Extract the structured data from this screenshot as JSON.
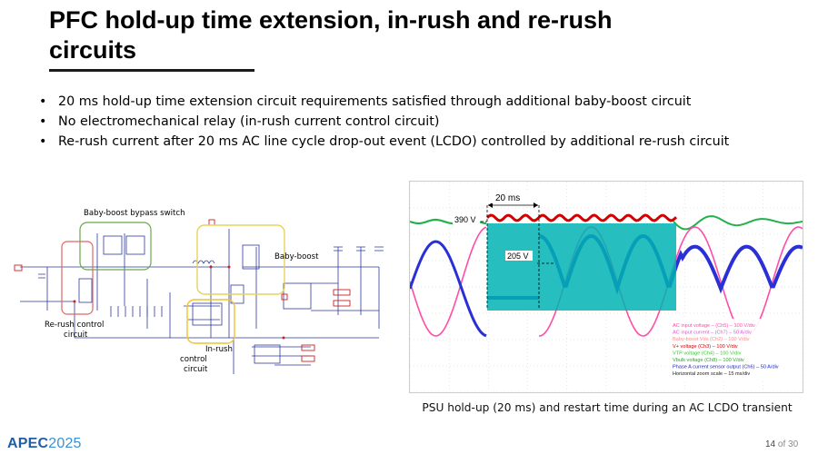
{
  "slide": {
    "title": "PFC hold-up time extension, in-rush and re-rush circuits",
    "bullets": [
      "20 ms hold-up time extension circuit requirements satisfied through additional baby-boost circuit",
      "No electromechanical relay (in-rush current control circuit)",
      "Re-rush current after 20 ms AC line cycle drop-out event (LCDO) controlled by additional re-rush circuit"
    ],
    "caption": "PSU hold-up (20 ms) and restart time during an AC LCDO transient",
    "page_current": "14",
    "page_separator": "of",
    "page_total": "30"
  },
  "logo": {
    "apec": "APEC",
    "year": "2025"
  },
  "schematic": {
    "labels": {
      "bypass_switch": "Baby-boost bypass switch",
      "baby_boost": "Baby-boost",
      "rerush_line1": "Re-rush control",
      "rerush_line2": "circuit",
      "inrush_line1": "In-rush",
      "inrush_line2": "control",
      "inrush_line3": "circuit"
    },
    "colors": {
      "wire": "#2f3a9e",
      "bypass_box": "#6aa84f",
      "boost_box": "#e6d35a",
      "rerush_box": "#e06666",
      "inrush_box": "#f1c232",
      "component_red": "#cc2222"
    }
  },
  "scope": {
    "annotations": {
      "duration": "20 ms",
      "v390": "390 V",
      "v205": "205 V"
    },
    "legend": [
      {
        "text": "AC input voltage – (Ch5) – 100 V/div",
        "color": "#ff4da6"
      },
      {
        "text": "AC input current – (Ch7) – 50 A/div",
        "color": "#d45bd4"
      },
      {
        "text": "Baby-boost Vds (Ch2) – 100 V/div",
        "color": "#ff8c8c"
      },
      {
        "text": "V+ voltage (Ch3) – 100 V/div",
        "color": "#d40000"
      },
      {
        "text": "VTP voltage (Ch4) – 100 V/div",
        "color": "#33cc33"
      },
      {
        "text": "Vbulk voltage (Ch8) – 100 V/div",
        "color": "#2aa52a"
      },
      {
        "text": "Phase A current sensor output (Ch6) – 50 A/div",
        "color": "#1a2bbf"
      },
      {
        "text": "Horizontal zoom scale – 15 ms/div",
        "color": "#222222"
      }
    ],
    "colors": {
      "ac_voltage": "#ff4da6",
      "ac_current": "#2b2fd6",
      "vbulk": "#22b14c",
      "vplus": "#d40000",
      "vds": "#00b3b3",
      "grid": "#cfcfcf"
    }
  }
}
